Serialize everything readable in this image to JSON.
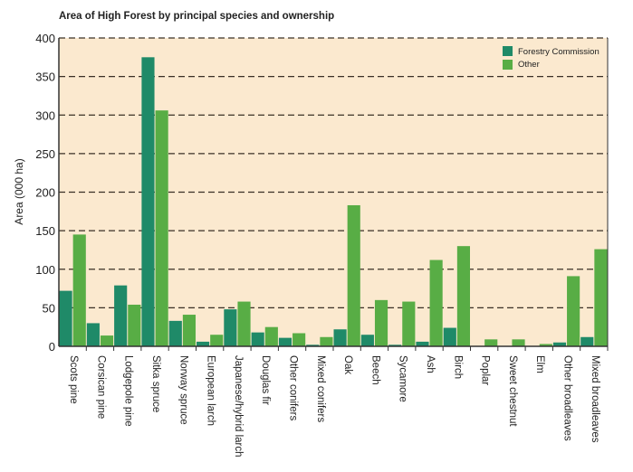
{
  "chart_data": {
    "type": "bar",
    "title": "Area of High Forest by principal species and ownership",
    "ylabel": "Area (000 ha)",
    "xlabel": "",
    "ylim": [
      0,
      400
    ],
    "yticks": [
      "0",
      "50",
      "100",
      "150",
      "200",
      "250",
      "300",
      "350",
      "400"
    ],
    "grid": "horizontal dashed",
    "legend_placement": "top-right",
    "categories": [
      "Scots pine",
      "Corsican pine",
      "Lodgepole pine",
      "Sitka spruce",
      "Norway spruce",
      "European larch",
      "Japanese/hybrid larch",
      "Douglas fir",
      "Other conifers",
      "Mixed conifers",
      "Oak",
      "Beech",
      "Sycamore",
      "Ash",
      "Birch",
      "Poplar",
      "Sweet chestnut",
      "Elm",
      "Other broadleaves",
      "Mixed broadleaves"
    ],
    "series": [
      {
        "name": "Forestry Commission",
        "color": "#1f8a68",
        "values": [
          72,
          30,
          79,
          375,
          33,
          6,
          48,
          18,
          11,
          2,
          22,
          15,
          2,
          6,
          24,
          0,
          0,
          0,
          5,
          12
        ]
      },
      {
        "name": "Other",
        "color": "#58ad45",
        "values": [
          145,
          14,
          54,
          306,
          41,
          15,
          58,
          25,
          17,
          12,
          183,
          60,
          58,
          112,
          130,
          9,
          9,
          3,
          91,
          126
        ]
      }
    ],
    "background": "#fbe9cf"
  }
}
